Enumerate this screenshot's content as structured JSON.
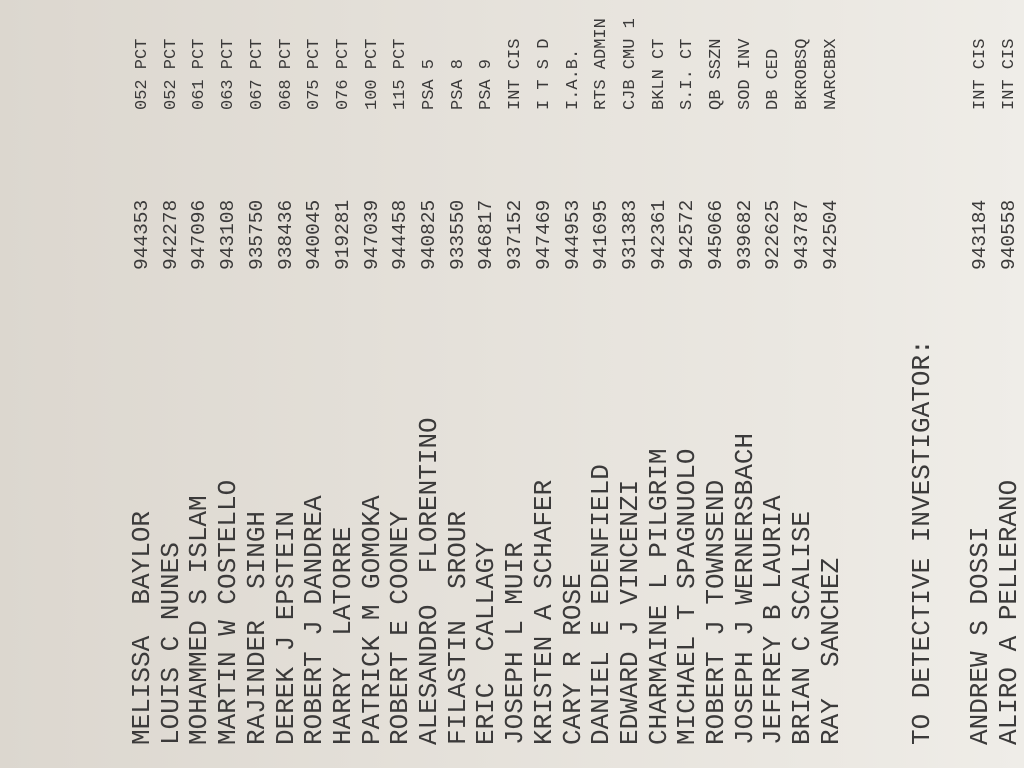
{
  "rows": [
    {
      "name": "MELISSA  BAYLOR",
      "badge": "944353",
      "command": "052 PCT"
    },
    {
      "name": "LOUIS C NUNES",
      "badge": "942278",
      "command": "052 PCT"
    },
    {
      "name": "MOHAMMED S ISLAM",
      "badge": "947096",
      "command": "061 PCT"
    },
    {
      "name": "MARTIN W COSTELLO",
      "badge": "943108",
      "command": "063 PCT"
    },
    {
      "name": "RAJINDER  SINGH",
      "badge": "935750",
      "command": "067 PCT"
    },
    {
      "name": "DEREK J EPSTEIN",
      "badge": "938436",
      "command": "068 PCT"
    },
    {
      "name": "ROBERT J DANDREA",
      "badge": "940045",
      "command": "075 PCT"
    },
    {
      "name": "HARRY  LATORRE",
      "badge": "919281",
      "command": "076 PCT"
    },
    {
      "name": "PATRICK M GOMOKA",
      "badge": "947039",
      "command": "100 PCT"
    },
    {
      "name": "ROBERT E COONEY",
      "badge": "944458",
      "command": "115 PCT"
    },
    {
      "name": "ALESANDRO  FLORENTINO",
      "badge": "940825",
      "command": "PSA 5"
    },
    {
      "name": "FILASTIN  SROUR",
      "badge": "933550",
      "command": "PSA 8"
    },
    {
      "name": "ERIC  CALLAGY",
      "badge": "946817",
      "command": "PSA 9"
    },
    {
      "name": "JOSEPH L MUIR",
      "badge": "937152",
      "command": "INT CIS"
    },
    {
      "name": "KRISTEN A SCHAFER",
      "badge": "947469",
      "command": "I T S D"
    },
    {
      "name": "CARY R ROSE",
      "badge": "944953",
      "command": "I.A.B."
    },
    {
      "name": "DANIEL E EDENFIELD",
      "badge": "941695",
      "command": "RTS ADMIN"
    },
    {
      "name": "EDWARD J VINCENZI",
      "badge": "931383",
      "command": "CJB CMU 1"
    },
    {
      "name": "CHARMAINE L PILGRIM",
      "badge": "942361",
      "command": "BKLN CT"
    },
    {
      "name": "MICHAEL T SPAGNUOLO",
      "badge": "942572",
      "command": "S.I. CT"
    },
    {
      "name": "ROBERT J TOWNSEND",
      "badge": "945066",
      "command": "QB SSZN"
    },
    {
      "name": "JOSEPH J WERNERSBACH",
      "badge": "939682",
      "command": "SOD INV"
    },
    {
      "name": "JEFFREY B LAURIA",
      "badge": "922625",
      "command": "DB CED"
    },
    {
      "name": "BRIAN C SCALISE",
      "badge": "943787",
      "command": "BKROBSQ"
    },
    {
      "name": "RAY  SANCHEZ",
      "badge": "942504",
      "command": "NARCBBX"
    }
  ],
  "section_heading": "TO DETECTIVE INVESTIGATOR:",
  "section_rows": [
    {
      "name": "ANDREW S DOSSI",
      "badge": "943184",
      "command": "INT CIS"
    },
    {
      "name": "ALIRO A PELLERANO",
      "badge": "940558",
      "command": "INT CIS"
    }
  ]
}
